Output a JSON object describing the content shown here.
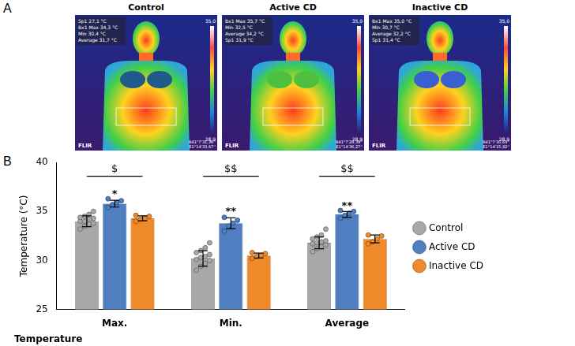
{
  "panel_labels": [
    "A",
    "B"
  ],
  "images": [
    {
      "title": "Control",
      "readings": [
        [
          "Sp1",
          "27,1 °C"
        ],
        [
          "Bx1",
          "Max",
          "34,3 °C"
        ],
        [
          "Min",
          "30,4 °C"
        ],
        [
          "Average",
          "31,7 °C"
        ]
      ],
      "scale_max": "35,0",
      "scale_min": "28,9",
      "brand": "FLIR",
      "coords": [
        "N41°7'31,36''",
        "E1°14'33,67''"
      ]
    },
    {
      "title": "Active CD",
      "readings": [
        [
          "Bx1",
          "Max",
          "35,7 °C"
        ],
        [
          "Min",
          "32,5 °C"
        ],
        [
          "Average",
          "34,2 °C"
        ],
        [
          "Sp1",
          "31,9 °C"
        ]
      ],
      "scale_max": "35,0",
      "scale_min": "28,9",
      "brand": "FLIR",
      "coords": [
        "N41°7'29,39''",
        "E1°14'36,27''"
      ]
    },
    {
      "title": "Inactive CD",
      "readings": [
        [
          "Bx1",
          "Max",
          "35,0 °C"
        ],
        [
          "Min",
          "30,7 °C"
        ],
        [
          "Average",
          "32,2 °C"
        ],
        [
          "Sp1",
          "31,4 °C"
        ]
      ],
      "scale_max": "35,0",
      "scale_min": "28,9",
      "brand": "FLIR",
      "coords": [
        "N41°7'30,63''",
        "E1°14'15,92''"
      ]
    }
  ],
  "chart_data": {
    "type": "bar",
    "categories": [
      "Max.",
      "Min.",
      "Average"
    ],
    "y_label": "Temperature (°C)",
    "x_label": "Temperature",
    "ylim": [
      25,
      40
    ],
    "yticks": [
      25,
      30,
      35,
      40
    ],
    "grid": false,
    "legend": "right",
    "series": [
      {
        "name": "Control",
        "color": "#a8a8a8",
        "values": [
          34.0,
          30.2,
          31.8
        ],
        "errors": [
          0.55,
          0.8,
          0.6
        ],
        "points": [
          [
            33.2,
            33.5,
            33.7,
            33.8,
            34.0,
            34.0,
            34.2,
            34.3,
            34.4,
            34.5,
            34.7,
            35.0
          ],
          [
            29.0,
            29.4,
            29.7,
            30.0,
            30.1,
            30.3,
            30.4,
            30.6,
            30.8,
            31.0,
            31.3,
            31.8
          ],
          [
            30.9,
            31.2,
            31.4,
            31.6,
            31.7,
            31.8,
            31.9,
            32.0,
            32.2,
            32.4,
            32.6,
            33.2
          ]
        ]
      },
      {
        "name": "Active CD",
        "color": "#4f7fc0",
        "values": [
          35.8,
          33.8,
          34.7
        ],
        "errors": [
          0.35,
          0.55,
          0.3
        ],
        "points": [
          [
            35.4,
            35.7,
            35.9,
            36.1,
            36.3
          ],
          [
            33.0,
            33.5,
            33.8,
            34.1,
            34.4
          ],
          [
            34.3,
            34.6,
            34.8,
            35.0,
            35.1
          ]
        ]
      },
      {
        "name": "Inactive CD",
        "color": "#ee8a2a",
        "values": [
          34.3,
          30.5,
          32.2
        ],
        "errors": [
          0.25,
          0.25,
          0.4
        ],
        "points": [
          [
            34.0,
            34.2,
            34.3,
            34.5,
            34.6
          ],
          [
            30.2,
            30.4,
            30.5,
            30.7,
            30.8
          ],
          [
            31.7,
            31.9,
            32.2,
            32.5,
            32.6
          ]
        ]
      }
    ],
    "annotations": [
      {
        "text": "*",
        "category": "Max.",
        "series": "Active CD",
        "y": 36.7
      },
      {
        "text": "**",
        "category": "Min.",
        "series": "Active CD",
        "y": 34.9
      },
      {
        "text": "**",
        "category": "Average",
        "series": "Active CD",
        "y": 35.5
      }
    ],
    "brackets": [
      {
        "text": "$",
        "category": "Max.",
        "y": 38.6
      },
      {
        "text": "$$",
        "category": "Min.",
        "y": 38.6
      },
      {
        "text": "$$",
        "category": "Average",
        "y": 38.6
      }
    ]
  }
}
